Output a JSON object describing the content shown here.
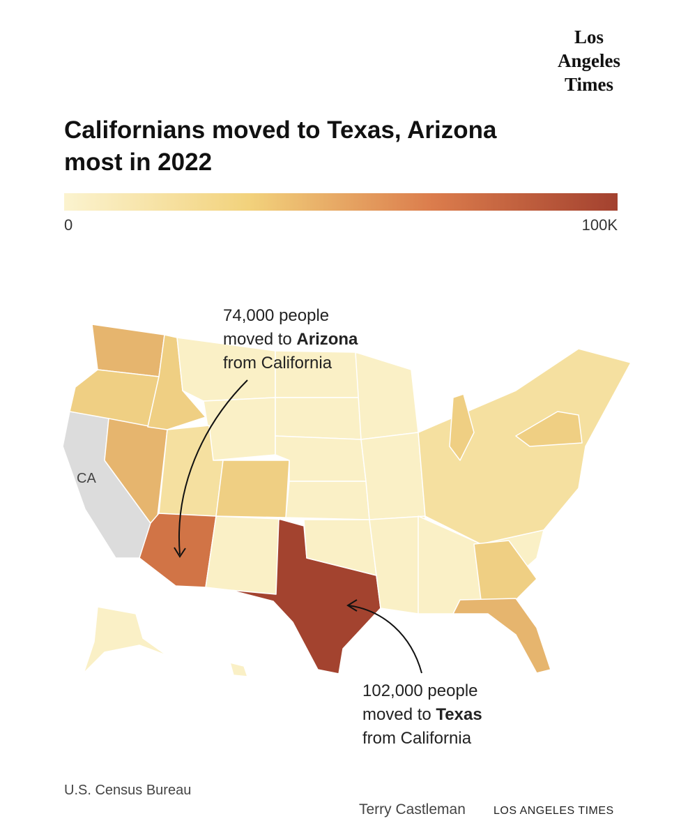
{
  "logo": [
    "Los",
    "Angeles",
    "Times"
  ],
  "title": [
    "Californians moved to Texas, Arizona",
    "most in 2022"
  ],
  "legend": {
    "colors": [
      "#fbf3cf",
      "#f2d27c",
      "#db7c4c",
      "#a3412f"
    ],
    "ticks": [
      0,
      {
        "value": 100000,
        "label": "100K"
      }
    ]
  },
  "map": {
    "label": "CA"
  },
  "annotations": [
    {
      "line1": "74,000 people",
      "prefix": "moved to",
      "bold": "Arizona",
      "line3": "from California"
    },
    {
      "line1": "102,000 people",
      "prefix": "moved to",
      "bold": "Texas",
      "line3": "from California"
    }
  ],
  "source": "U.S. Census Bureau",
  "credit": {
    "author": "Terry Castleman",
    "org": "LOS ANGELES TIMES"
  }
}
